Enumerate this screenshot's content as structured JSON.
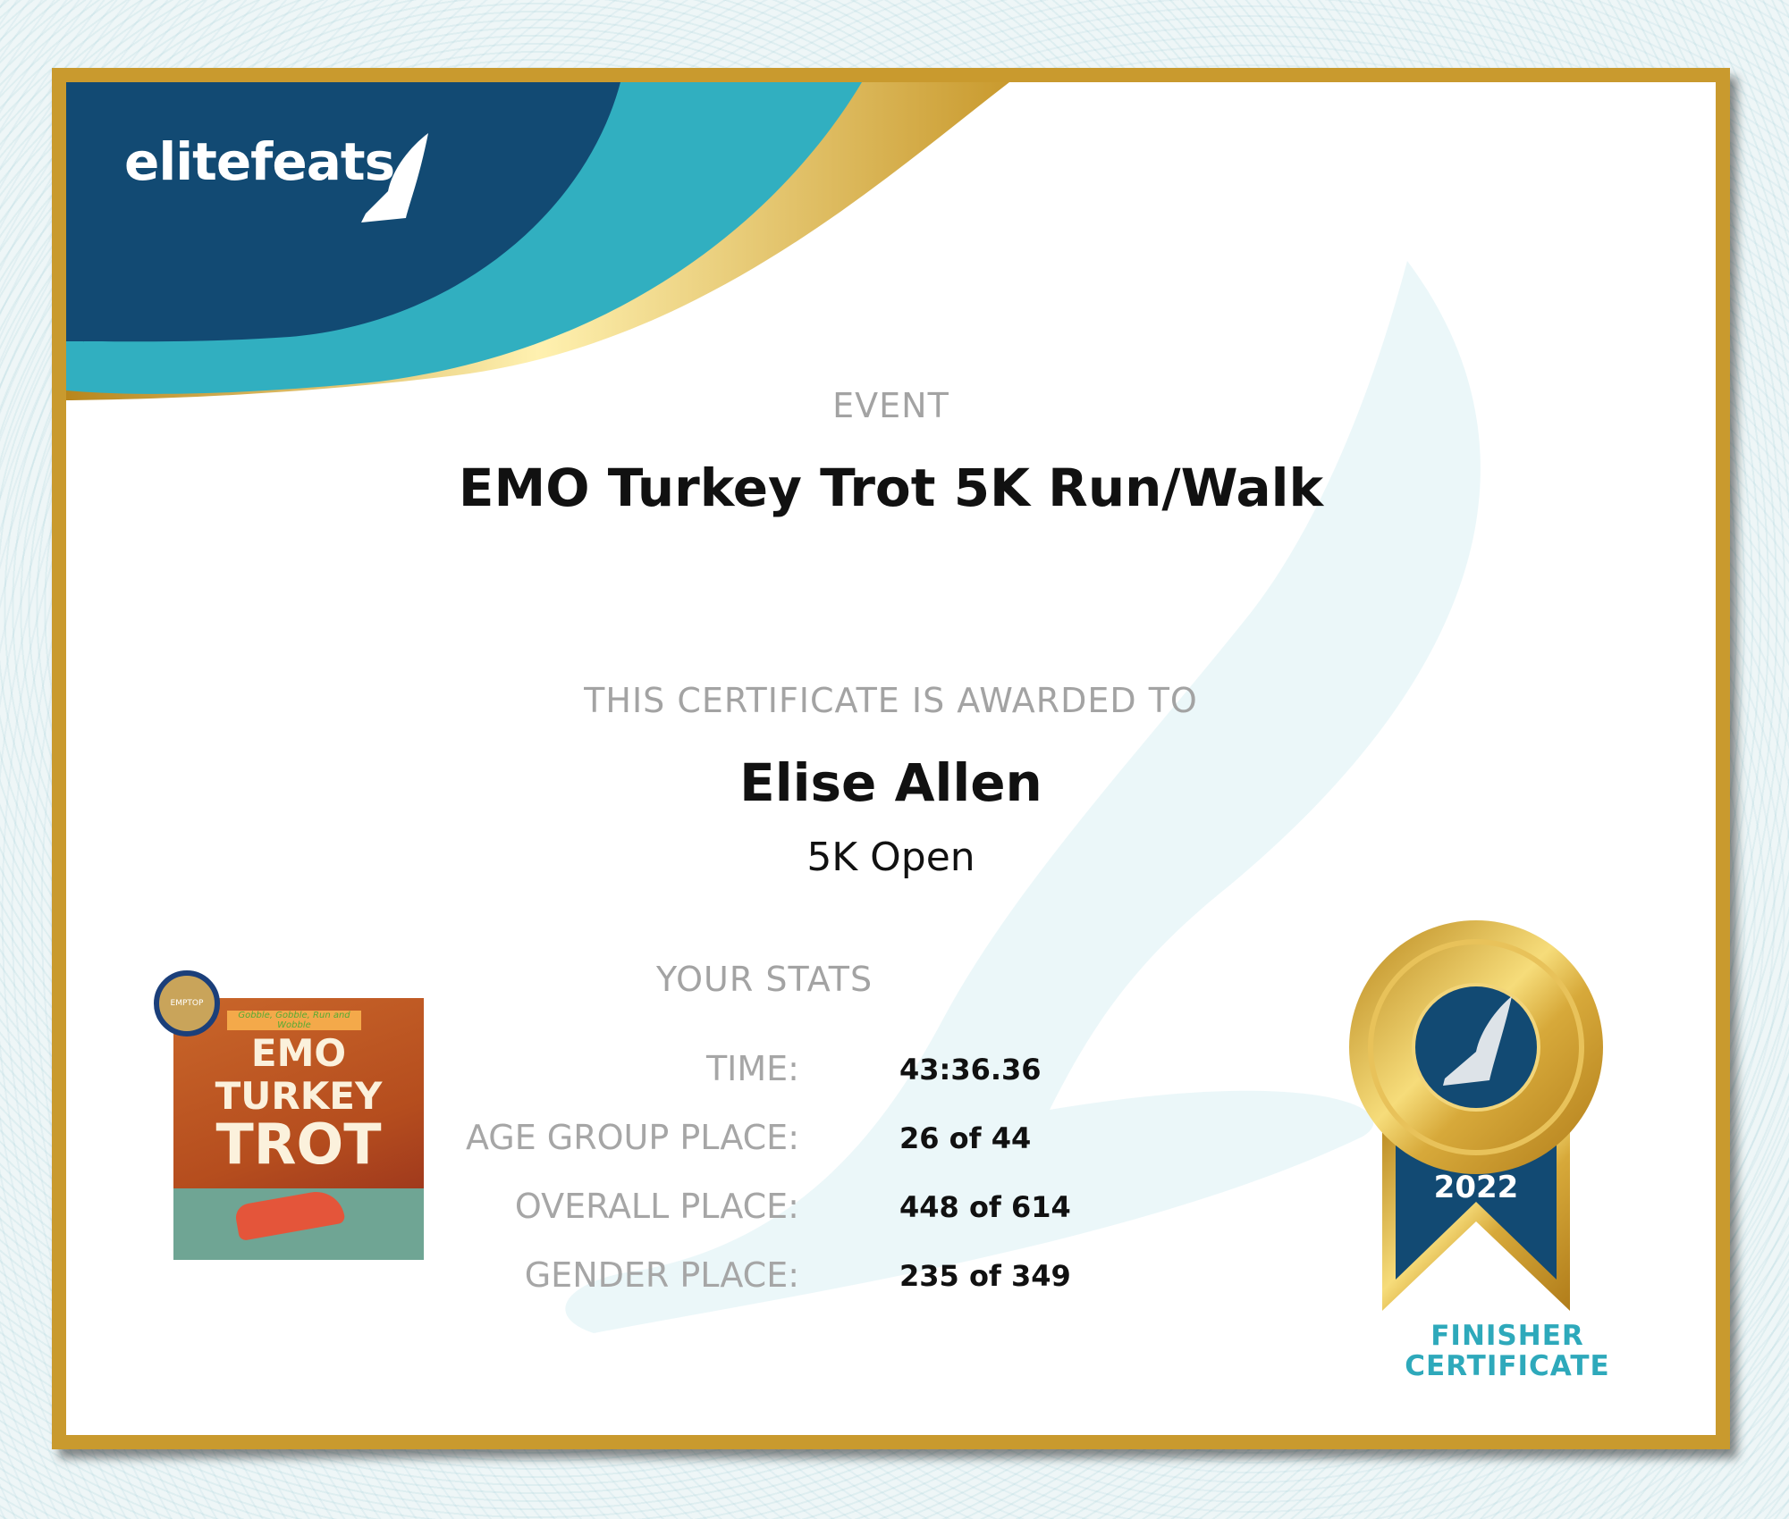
{
  "brand": {
    "name": "elitefeats"
  },
  "event": {
    "label": "EVENT",
    "name": "EMO Turkey Trot 5K Run/Walk"
  },
  "award": {
    "label": "THIS CERTIFICATE IS AWARDED TO",
    "name": "Elise Allen",
    "division": "5K Open"
  },
  "stats": {
    "heading": "YOUR STATS",
    "rows": [
      {
        "label": "TIME:",
        "value": "43:36.36"
      },
      {
        "label": "AGE GROUP PLACE:",
        "value": "26 of 44"
      },
      {
        "label": "OVERALL PLACE:",
        "value": "448 of 614"
      },
      {
        "label": "GENDER PLACE:",
        "value": "235 of 349"
      }
    ]
  },
  "event_logo": {
    "banner": "Gobble, Gobble, Run and Wobble",
    "line1": "EMO",
    "line2": "TURKEY",
    "line3": "TROT",
    "seal": "EMPTOP"
  },
  "medal": {
    "year": "2022",
    "caption_line1": "FINISHER",
    "caption_line2": "CERTIFICATE"
  },
  "colors": {
    "navy": "#124a73",
    "teal": "#31afc0",
    "gold": "#c99a2e"
  }
}
